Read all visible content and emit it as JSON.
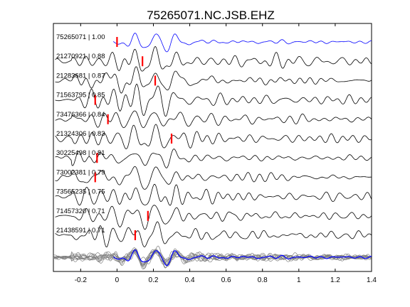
{
  "chart_data": {
    "type": "line",
    "title": "75265071.NC.JSB.EHZ",
    "xlabel": "",
    "ylabel": "",
    "xlim": [
      -0.35,
      1.4
    ],
    "xticks": [
      -0.2,
      0,
      0.2,
      0.4,
      0.6,
      0.8,
      1,
      1.2,
      1.4
    ],
    "xtick_labels": [
      "-0.2",
      "0",
      "0.2",
      "0.4",
      "0.6",
      "0.8",
      "1",
      "1.2",
      "1.4"
    ],
    "grid": false,
    "legend": "none",
    "colors": {
      "reference": "#0000ff",
      "trace": "#000000",
      "stack": "#808080",
      "pick": "#ff0000"
    },
    "series": [
      {
        "label": "75265071 | 1.00",
        "pick_time": 0.0,
        "reference": true
      },
      {
        "label": "21270921 | 0.88",
        "pick_time": 0.14
      },
      {
        "label": "21283681 | 0.87",
        "pick_time": 0.21
      },
      {
        "label": "71563795 | 0.85",
        "pick_time": -0.12
      },
      {
        "label": "73476366 | 0.84",
        "pick_time": -0.05
      },
      {
        "label": "21324306 | 0.83",
        "pick_time": 0.3
      },
      {
        "label": "30225498 | 0.81",
        "pick_time": -0.11
      },
      {
        "label": "73002381 | 0.79",
        "pick_time": -0.12
      },
      {
        "label": "73565235 | 0.75",
        "pick_time": null
      },
      {
        "label": "71457320 | 0.71",
        "pick_time": 0.17
      },
      {
        "label": "21438591 | 0.71",
        "pick_time": 0.1
      }
    ],
    "stack_traces": 11
  }
}
